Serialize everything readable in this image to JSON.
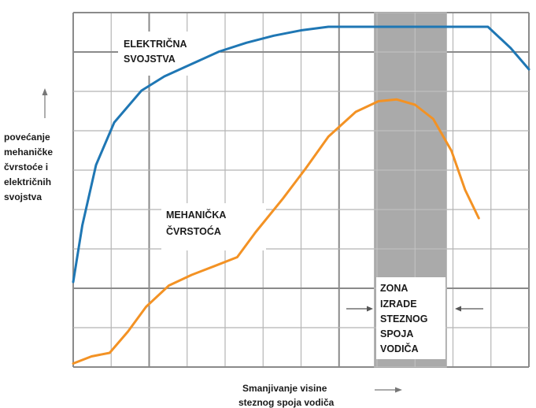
{
  "chart_data": {
    "type": "line",
    "title": "",
    "ylabel": "povećanje mehaničke čvrstoće i električnih svojstva",
    "ylabel_lines": [
      "povećanje",
      "mehaničke",
      "čvrstoće i",
      "električnih",
      "svojstva"
    ],
    "xlabel": "Smanjivanje visine steznog spoja vodiča",
    "xlabel_lines": [
      "Smanjivanje visine",
      "steznog spoja vodiča"
    ],
    "xlim": [
      0,
      100
    ],
    "ylim": [
      0,
      100
    ],
    "grid": true,
    "zone": {
      "x_start": 66,
      "x_end": 82,
      "label_lines": [
        "ZONA",
        "IZRADE",
        "STEZNOG",
        "SPOJA",
        "VODIČA"
      ]
    },
    "series": [
      {
        "name": "ELEKTRIČNA SVOJSTVA",
        "label_lines": [
          "ELEKTRIČNA",
          "SVOJSTVA"
        ],
        "color": "#1f77b4",
        "x": [
          0,
          2,
          5,
          9,
          15,
          20,
          26,
          32,
          38,
          44,
          50,
          56,
          62,
          68,
          74,
          80,
          86,
          91,
          96,
          100
        ],
        "y": [
          24,
          40,
          57,
          69,
          78,
          82,
          85.5,
          89,
          91.5,
          93.5,
          95,
          96,
          96,
          96,
          96,
          96,
          96,
          96,
          90,
          84
        ]
      },
      {
        "name": "MEHANIČKA ČVRSTOĆA",
        "label_lines": [
          "MEHANIČKA",
          "ČVRSTOĆA"
        ],
        "color": "#f39224",
        "x": [
          0,
          4,
          8,
          12,
          16,
          21,
          26,
          31,
          36,
          40,
          46,
          51,
          56,
          62,
          67,
          71,
          75,
          79,
          83,
          86,
          89
        ],
        "y": [
          1,
          3,
          4,
          10,
          17,
          23,
          26,
          28.5,
          31,
          38,
          47.5,
          56,
          65,
          72,
          75,
          75.5,
          74,
          70,
          61,
          50,
          42
        ]
      }
    ]
  }
}
